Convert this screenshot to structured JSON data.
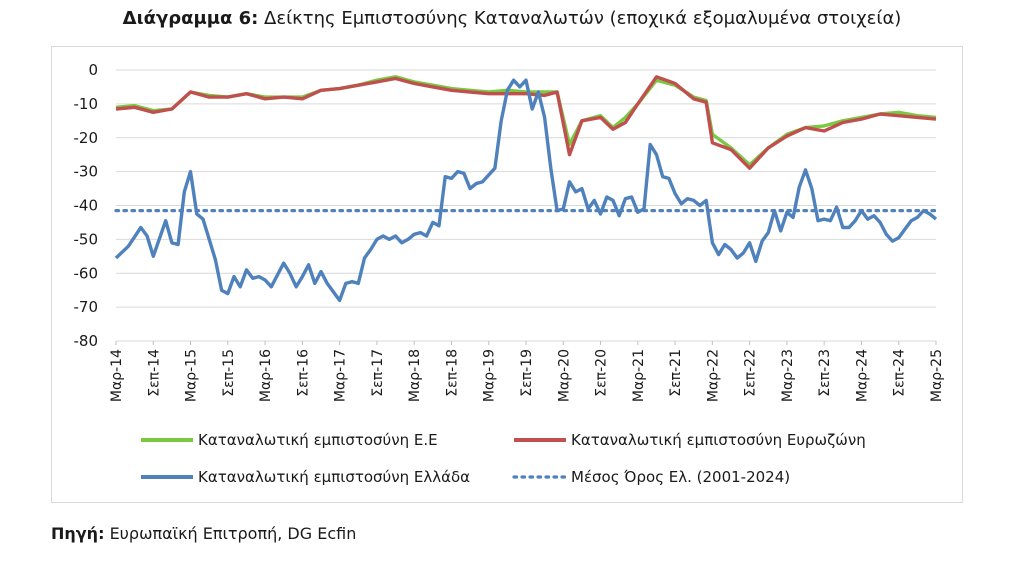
{
  "header": {
    "label": "Διάγραμμα 6:",
    "title": "Δείκτης Εμπιστοσύνης Καταναλωτών (εποχικά εξομαλυμένα στοιχεία)"
  },
  "footer": {
    "label": "Πηγή:",
    "text": "Ευρωπαϊκή Επιτροπή, DG Ecfin"
  },
  "chart_data": {
    "type": "line",
    "ylim": [
      -80,
      0
    ],
    "yticks": [
      0,
      -10,
      -20,
      -30,
      -40,
      -50,
      -60,
      -70,
      -80
    ],
    "x_start": "2014-03",
    "x_end": "2025-03",
    "xtick_labels": [
      "Μαρ-14",
      "Σεπ-14",
      "Μαρ-15",
      "Σεπ-15",
      "Μαρ-16",
      "Σεπ-16",
      "Μαρ-17",
      "Σεπ-17",
      "Μαρ-18",
      "Σεπ-18",
      "Μαρ-19",
      "Σεπ-19",
      "Μαρ-20",
      "Σεπ-20",
      "Μαρ-21",
      "Σεπ-21",
      "Μαρ-22",
      "Σεπ-22",
      "Μαρ-23",
      "Σεπ-23",
      "Μαρ-24",
      "Σεπ-24",
      "Μαρ-25"
    ],
    "grid": true,
    "legend_position": "bottom",
    "series": [
      {
        "name": "Καταναλωτική εμπιστοσύνη Ε.Ε",
        "color": "#7ac943",
        "style": "solid",
        "points": [
          [
            "2014-03",
            -11
          ],
          [
            "2014-06",
            -10.5
          ],
          [
            "2014-09",
            -12
          ],
          [
            "2014-12",
            -11.5
          ],
          [
            "2015-03",
            -6.5
          ],
          [
            "2015-06",
            -7.5
          ],
          [
            "2015-09",
            -8
          ],
          [
            "2015-12",
            -7
          ],
          [
            "2016-03",
            -8
          ],
          [
            "2016-06",
            -8
          ],
          [
            "2016-09",
            -8
          ],
          [
            "2016-12",
            -6
          ],
          [
            "2017-03",
            -5.5
          ],
          [
            "2017-06",
            -4.5
          ],
          [
            "2017-09",
            -3
          ],
          [
            "2017-12",
            -2
          ],
          [
            "2018-03",
            -3.5
          ],
          [
            "2018-06",
            -4.5
          ],
          [
            "2018-09",
            -5.5
          ],
          [
            "2018-12",
            -6
          ],
          [
            "2019-03",
            -6.5
          ],
          [
            "2019-06",
            -6
          ],
          [
            "2019-09",
            -6.5
          ],
          [
            "2019-12",
            -6.5
          ],
          [
            "2020-01",
            -6.5
          ],
          [
            "2020-02",
            -6.5
          ],
          [
            "2020-04",
            -22
          ],
          [
            "2020-06",
            -15
          ],
          [
            "2020-09",
            -13.5
          ],
          [
            "2020-11",
            -17
          ],
          [
            "2021-01",
            -14
          ],
          [
            "2021-03",
            -10
          ],
          [
            "2021-06",
            -3
          ],
          [
            "2021-09",
            -4.5
          ],
          [
            "2021-12",
            -8
          ],
          [
            "2022-02",
            -9
          ],
          [
            "2022-03",
            -19
          ],
          [
            "2022-06",
            -23
          ],
          [
            "2022-09",
            -28
          ],
          [
            "2022-12",
            -23
          ],
          [
            "2023-03",
            -19
          ],
          [
            "2023-06",
            -17
          ],
          [
            "2023-09",
            -16.5
          ],
          [
            "2023-12",
            -15
          ],
          [
            "2024-03",
            -14
          ],
          [
            "2024-06",
            -13
          ],
          [
            "2024-09",
            -12.5
          ],
          [
            "2024-12",
            -13.5
          ],
          [
            "2025-03",
            -14
          ]
        ]
      },
      {
        "name": "Καταναλωτική εμπιστοσύνη Ευρωζώνη",
        "color": "#c0504d",
        "style": "solid",
        "points": [
          [
            "2014-03",
            -11.5
          ],
          [
            "2014-06",
            -11
          ],
          [
            "2014-09",
            -12.5
          ],
          [
            "2014-12",
            -11.5
          ],
          [
            "2015-03",
            -6.5
          ],
          [
            "2015-06",
            -8
          ],
          [
            "2015-09",
            -8
          ],
          [
            "2015-12",
            -7
          ],
          [
            "2016-03",
            -8.5
          ],
          [
            "2016-06",
            -8
          ],
          [
            "2016-09",
            -8.5
          ],
          [
            "2016-12",
            -6
          ],
          [
            "2017-03",
            -5.5
          ],
          [
            "2017-06",
            -4.5
          ],
          [
            "2017-09",
            -3.5
          ],
          [
            "2017-12",
            -2.5
          ],
          [
            "2018-03",
            -4
          ],
          [
            "2018-06",
            -5
          ],
          [
            "2018-09",
            -6
          ],
          [
            "2018-12",
            -6.5
          ],
          [
            "2019-03",
            -7
          ],
          [
            "2019-06",
            -7
          ],
          [
            "2019-09",
            -7
          ],
          [
            "2019-12",
            -7.5
          ],
          [
            "2020-01",
            -7
          ],
          [
            "2020-02",
            -6.5
          ],
          [
            "2020-04",
            -25
          ],
          [
            "2020-06",
            -15
          ],
          [
            "2020-09",
            -14
          ],
          [
            "2020-11",
            -17.5
          ],
          [
            "2021-01",
            -15.5
          ],
          [
            "2021-03",
            -10
          ],
          [
            "2021-06",
            -2
          ],
          [
            "2021-09",
            -4
          ],
          [
            "2021-12",
            -8.5
          ],
          [
            "2022-02",
            -9.5
          ],
          [
            "2022-03",
            -21.5
          ],
          [
            "2022-06",
            -23.5
          ],
          [
            "2022-09",
            -29
          ],
          [
            "2022-12",
            -23
          ],
          [
            "2023-03",
            -19.5
          ],
          [
            "2023-06",
            -17
          ],
          [
            "2023-09",
            -18
          ],
          [
            "2023-12",
            -15.5
          ],
          [
            "2024-03",
            -14.5
          ],
          [
            "2024-06",
            -13
          ],
          [
            "2024-09",
            -13.5
          ],
          [
            "2024-12",
            -14
          ],
          [
            "2025-03",
            -14.5
          ]
        ]
      },
      {
        "name": "Καταναλωτική εμπιστοσύνη Ελλάδα",
        "color": "#4f81bd",
        "style": "solid",
        "points": [
          [
            "2014-03",
            -55.5
          ],
          [
            "2014-05",
            -52
          ],
          [
            "2014-07",
            -46.5
          ],
          [
            "2014-08",
            -49
          ],
          [
            "2014-09",
            -55
          ],
          [
            "2014-11",
            -44.5
          ],
          [
            "2014-12",
            -51
          ],
          [
            "2015-01",
            -51.5
          ],
          [
            "2015-02",
            -36
          ],
          [
            "2015-03",
            -30
          ],
          [
            "2015-04",
            -42.5
          ],
          [
            "2015-05",
            -44
          ],
          [
            "2015-06",
            -50
          ],
          [
            "2015-07",
            -56
          ],
          [
            "2015-08",
            -65
          ],
          [
            "2015-09",
            -66
          ],
          [
            "2015-10",
            -61
          ],
          [
            "2015-11",
            -64
          ],
          [
            "2015-12",
            -59
          ],
          [
            "2016-01",
            -61.5
          ],
          [
            "2016-02",
            -61
          ],
          [
            "2016-03",
            -62
          ],
          [
            "2016-04",
            -64
          ],
          [
            "2016-05",
            -60.5
          ],
          [
            "2016-06",
            -57
          ],
          [
            "2016-07",
            -60
          ],
          [
            "2016-08",
            -64
          ],
          [
            "2016-09",
            -61
          ],
          [
            "2016-10",
            -57.5
          ],
          [
            "2016-11",
            -63
          ],
          [
            "2016-12",
            -59.5
          ],
          [
            "2017-01",
            -63
          ],
          [
            "2017-02",
            -65.5
          ],
          [
            "2017-03",
            -68
          ],
          [
            "2017-04",
            -63
          ],
          [
            "2017-05",
            -62.5
          ],
          [
            "2017-06",
            -63
          ],
          [
            "2017-07",
            -55.5
          ],
          [
            "2017-08",
            -53
          ],
          [
            "2017-09",
            -50
          ],
          [
            "2017-10",
            -49
          ],
          [
            "2017-11",
            -50
          ],
          [
            "2017-12",
            -49
          ],
          [
            "2018-01",
            -51
          ],
          [
            "2018-02",
            -50
          ],
          [
            "2018-03",
            -48.5
          ],
          [
            "2018-04",
            -48
          ],
          [
            "2018-05",
            -49
          ],
          [
            "2018-06",
            -45
          ],
          [
            "2018-07",
            -46
          ],
          [
            "2018-08",
            -31.5
          ],
          [
            "2018-09",
            -32
          ],
          [
            "2018-10",
            -30
          ],
          [
            "2018-11",
            -30.5
          ],
          [
            "2018-12",
            -35
          ],
          [
            "2019-01",
            -33.5
          ],
          [
            "2019-02",
            -33
          ],
          [
            "2019-03",
            -31
          ],
          [
            "2019-04",
            -29
          ],
          [
            "2019-05",
            -15
          ],
          [
            "2019-06",
            -6
          ],
          [
            "2019-07",
            -3
          ],
          [
            "2019-08",
            -5
          ],
          [
            "2019-09",
            -3
          ],
          [
            "2019-10",
            -11.5
          ],
          [
            "2019-11",
            -6.5
          ],
          [
            "2019-12",
            -14
          ],
          [
            "2020-01",
            -29
          ],
          [
            "2020-02",
            -41.5
          ],
          [
            "2020-03",
            -41
          ],
          [
            "2020-04",
            -33
          ],
          [
            "2020-05",
            -36
          ],
          [
            "2020-06",
            -35
          ],
          [
            "2020-07",
            -41
          ],
          [
            "2020-08",
            -38.5
          ],
          [
            "2020-09",
            -42.5
          ],
          [
            "2020-10",
            -37.5
          ],
          [
            "2020-11",
            -38.5
          ],
          [
            "2020-12",
            -43
          ],
          [
            "2021-01",
            -38
          ],
          [
            "2021-02",
            -37.5
          ],
          [
            "2021-03",
            -42
          ],
          [
            "2021-04",
            -41
          ],
          [
            "2021-05",
            -22
          ],
          [
            "2021-06",
            -25
          ],
          [
            "2021-07",
            -31.5
          ],
          [
            "2021-08",
            -32
          ],
          [
            "2021-09",
            -36.5
          ],
          [
            "2021-10",
            -39.5
          ],
          [
            "2021-11",
            -38
          ],
          [
            "2021-12",
            -38.5
          ],
          [
            "2022-01",
            -40
          ],
          [
            "2022-02",
            -38.5
          ],
          [
            "2022-03",
            -51
          ],
          [
            "2022-04",
            -54.5
          ],
          [
            "2022-05",
            -51.5
          ],
          [
            "2022-06",
            -53
          ],
          [
            "2022-07",
            -55.5
          ],
          [
            "2022-08",
            -54
          ],
          [
            "2022-09",
            -51
          ],
          [
            "2022-10",
            -56.5
          ],
          [
            "2022-11",
            -50.5
          ],
          [
            "2022-12",
            -48
          ],
          [
            "2023-01",
            -41.5
          ],
          [
            "2023-02",
            -47.5
          ],
          [
            "2023-03",
            -42
          ],
          [
            "2023-04",
            -43.5
          ],
          [
            "2023-05",
            -34.5
          ],
          [
            "2023-06",
            -29.5
          ],
          [
            "2023-07",
            -35
          ],
          [
            "2023-08",
            -44.5
          ],
          [
            "2023-09",
            -44
          ],
          [
            "2023-10",
            -44.5
          ],
          [
            "2023-11",
            -40.5
          ],
          [
            "2023-12",
            -46.5
          ],
          [
            "2024-01",
            -46.5
          ],
          [
            "2024-02",
            -44.5
          ],
          [
            "2024-03",
            -41.5
          ],
          [
            "2024-04",
            -44
          ],
          [
            "2024-05",
            -43
          ],
          [
            "2024-06",
            -45
          ],
          [
            "2024-07",
            -48.5
          ],
          [
            "2024-08",
            -50.5
          ],
          [
            "2024-09",
            -49.5
          ],
          [
            "2024-10",
            -47
          ],
          [
            "2024-11",
            -44.5
          ],
          [
            "2024-12",
            -43.5
          ],
          [
            "2025-01",
            -41.5
          ],
          [
            "2025-02",
            -42.5
          ],
          [
            "2025-03",
            -44
          ]
        ]
      },
      {
        "name": "Μέσος Όρος Ελ. (2001-2024)",
        "color": "#4f81bd",
        "style": "dotted",
        "points": [
          [
            "2014-03",
            -41.5
          ],
          [
            "2025-03",
            -41.5
          ]
        ]
      }
    ]
  }
}
